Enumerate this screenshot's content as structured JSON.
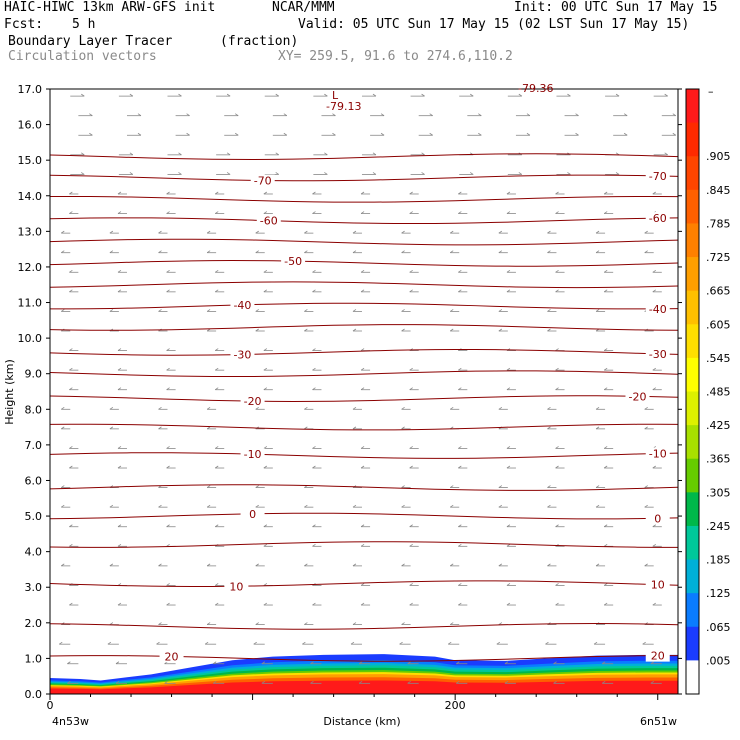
{
  "header": {
    "model": "HAIC-HIWC 13km ARW-GFS init",
    "org": "NCAR/MMM",
    "init": "Init: 00 UTC Sun 17 May 15",
    "fcst_label": "Fcst:",
    "fcst_value": "5 h",
    "valid": "Valid: 05 UTC Sun 17 May 15 (02 LST Sun 17 May 15)",
    "field1": "Boundary Layer Tracer",
    "field1_units": "(fraction)",
    "field2": "Circulation vectors",
    "xy": "XY= 259.5, 91.6 to 274.6,110.2"
  },
  "chart_data": {
    "type": "area",
    "ylabel": "Height (km)",
    "xlabel": "Distance (km)",
    "x_start_label": "4n53w",
    "x_end_label": "6n51w",
    "xlim": [
      0,
      310
    ],
    "ylim": [
      0,
      17
    ],
    "xticks": [
      0,
      200
    ],
    "yticks": [
      "0.0",
      "1.0",
      "2.0",
      "3.0",
      "4.0",
      "5.0",
      "6.0",
      "7.0",
      "8.0",
      "9.0",
      "10.0",
      "11.0",
      "12.0",
      "13.0",
      "14.0",
      "15.0",
      "16.0",
      "17.0"
    ],
    "low_label": "L",
    "low_value": "-79.13",
    "top_value": "-79.36",
    "contours": [
      {
        "level": "-70",
        "y": 14.5,
        "labels": [
          105,
          300
        ]
      },
      {
        "level": "-60",
        "y": 13.3,
        "labels": [
          108,
          300
        ]
      },
      {
        "level": "-50",
        "y": 12.1,
        "labels": [
          120
        ]
      },
      {
        "level": "-40",
        "y": 10.9,
        "labels": [
          95,
          300
        ]
      },
      {
        "level": "-30",
        "y": 9.6,
        "labels": [
          95,
          300
        ]
      },
      {
        "level": "-20",
        "y": 8.3,
        "labels": [
          100,
          290
        ]
      },
      {
        "level": "-10",
        "y": 6.7,
        "labels": [
          100,
          300
        ]
      },
      {
        "level": "0",
        "y": 5.0,
        "labels": [
          100,
          300
        ]
      },
      {
        "level": "10",
        "y": 3.1,
        "labels": [
          92,
          300
        ]
      },
      {
        "level": "20",
        "y": 1.0,
        "labels": [
          60,
          300
        ]
      }
    ],
    "unlabeled_contours": [
      15.1,
      13.9,
      12.7,
      11.5,
      10.3,
      9.0,
      7.5,
      5.8,
      4.2,
      1.9
    ],
    "tracer_top_km": [
      [
        0,
        0.45
      ],
      [
        15,
        0.42
      ],
      [
        25,
        0.38
      ],
      [
        35,
        0.45
      ],
      [
        50,
        0.55
      ],
      [
        70,
        0.75
      ],
      [
        90,
        0.95
      ],
      [
        110,
        1.05
      ],
      [
        135,
        1.1
      ],
      [
        165,
        1.12
      ],
      [
        190,
        1.05
      ],
      [
        200,
        0.95
      ],
      [
        225,
        0.93
      ],
      [
        245,
        1.0
      ],
      [
        270,
        1.08
      ],
      [
        295,
        1.1
      ],
      [
        310,
        1.1
      ]
    ],
    "colorbar": {
      "labels": [
        ".905",
        ".845",
        ".785",
        ".725",
        ".665",
        ".605",
        ".545",
        ".485",
        ".425",
        ".365",
        ".305",
        ".245",
        ".185",
        ".125",
        ".065",
        ".005"
      ],
      "top_label": "–",
      "colors": [
        "#ff1a1a",
        "#ff2a00",
        "#ff4500",
        "#ff6000",
        "#ff8000",
        "#ff9f00",
        "#ffc000",
        "#ffdf00",
        "#ffff00",
        "#ddf000",
        "#a8e000",
        "#66cc00",
        "#00b84a",
        "#00c89a",
        "#00b0d8",
        "#0a7cff",
        "#1a3cff",
        "#ffffff"
      ]
    }
  }
}
